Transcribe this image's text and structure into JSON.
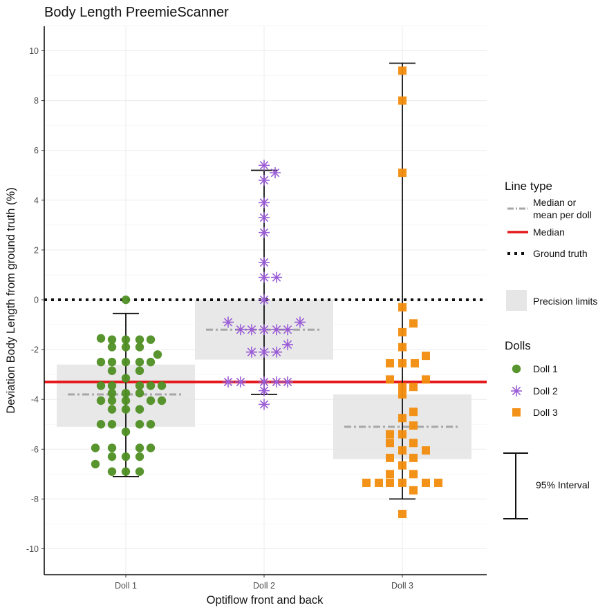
{
  "chart_data": {
    "type": "scatter",
    "title": "Body Length PreemieScanner",
    "xlabel": "Optiflow front and back",
    "ylabel": "Deviation Body Length from ground truth (%)",
    "ylim": [
      -11,
      11
    ],
    "yticks": [
      10,
      8,
      6,
      4,
      2,
      0,
      -2,
      -4,
      -6,
      -8,
      -10
    ],
    "ytick_labels": [
      "10",
      "8",
      "6",
      "4",
      "2",
      "0",
      "-2",
      "-4",
      "-6",
      "-8",
      "-10"
    ],
    "categories": [
      "Doll 1",
      "Doll 2",
      "Doll 3"
    ],
    "overall_median": -3.3,
    "ground_truth": 0,
    "colors": {
      "doll1": "#4f8f23",
      "doll2": "#9a5cd6",
      "doll3": "#f28c0c",
      "median": "#e41a1c",
      "mean": "#a6a6a6",
      "band": "#e6e6e6"
    },
    "series": [
      {
        "name": "Doll 1",
        "marker": "circle",
        "center": 1,
        "per_doll_median": -3.8,
        "precision_limits": [
          -5.1,
          -2.6
        ],
        "interval_95": [
          -7.1,
          -0.55
        ],
        "points": [
          {
            "x": 1.0,
            "y": 0.0
          },
          {
            "x": 0.82,
            "y": -1.55
          },
          {
            "x": 0.9,
            "y": -1.6
          },
          {
            "x": 1.0,
            "y": -1.6
          },
          {
            "x": 1.1,
            "y": -1.6
          },
          {
            "x": 1.18,
            "y": -1.6
          },
          {
            "x": 0.9,
            "y": -1.9
          },
          {
            "x": 1.0,
            "y": -1.9
          },
          {
            "x": 1.1,
            "y": -1.9
          },
          {
            "x": 1.23,
            "y": -2.2
          },
          {
            "x": 0.82,
            "y": -2.5
          },
          {
            "x": 0.9,
            "y": -2.5
          },
          {
            "x": 1.0,
            "y": -2.5
          },
          {
            "x": 1.1,
            "y": -2.5
          },
          {
            "x": 1.18,
            "y": -2.5
          },
          {
            "x": 0.9,
            "y": -2.85
          },
          {
            "x": 1.1,
            "y": -2.85
          },
          {
            "x": 1.0,
            "y": -3.15
          },
          {
            "x": 0.82,
            "y": -3.45
          },
          {
            "x": 0.9,
            "y": -3.45
          },
          {
            "x": 1.1,
            "y": -3.45
          },
          {
            "x": 1.18,
            "y": -3.45
          },
          {
            "x": 1.26,
            "y": -3.45
          },
          {
            "x": 0.9,
            "y": -3.75
          },
          {
            "x": 1.0,
            "y": -3.75
          },
          {
            "x": 1.1,
            "y": -3.75
          },
          {
            "x": 0.82,
            "y": -4.05
          },
          {
            "x": 0.9,
            "y": -4.05
          },
          {
            "x": 1.0,
            "y": -4.05
          },
          {
            "x": 1.18,
            "y": -4.05
          },
          {
            "x": 1.26,
            "y": -4.05
          },
          {
            "x": 0.9,
            "y": -4.4
          },
          {
            "x": 1.0,
            "y": -4.4
          },
          {
            "x": 1.1,
            "y": -4.4
          },
          {
            "x": 0.82,
            "y": -5.0
          },
          {
            "x": 0.9,
            "y": -5.0
          },
          {
            "x": 1.1,
            "y": -5.0
          },
          {
            "x": 1.18,
            "y": -5.0
          },
          {
            "x": 1.0,
            "y": -5.3
          },
          {
            "x": 0.78,
            "y": -5.95
          },
          {
            "x": 0.9,
            "y": -5.95
          },
          {
            "x": 1.1,
            "y": -5.95
          },
          {
            "x": 1.18,
            "y": -5.95
          },
          {
            "x": 0.9,
            "y": -6.3
          },
          {
            "x": 1.0,
            "y": -6.3
          },
          {
            "x": 1.1,
            "y": -6.3
          },
          {
            "x": 0.78,
            "y": -6.6
          },
          {
            "x": 0.9,
            "y": -6.9
          },
          {
            "x": 1.0,
            "y": -6.9
          },
          {
            "x": 1.1,
            "y": -6.9
          }
        ]
      },
      {
        "name": "Doll 2",
        "marker": "asterisk",
        "center": 2,
        "per_doll_median": -1.2,
        "precision_limits": [
          -2.4,
          0
        ],
        "interval_95": [
          -3.8,
          5.2
        ],
        "points": [
          {
            "x": 2.0,
            "y": 5.4
          },
          {
            "x": 2.08,
            "y": 5.1
          },
          {
            "x": 2.0,
            "y": 4.8
          },
          {
            "x": 2.0,
            "y": 3.9
          },
          {
            "x": 2.0,
            "y": 3.3
          },
          {
            "x": 2.0,
            "y": 2.7
          },
          {
            "x": 2.0,
            "y": 1.5
          },
          {
            "x": 2.0,
            "y": 0.9
          },
          {
            "x": 2.09,
            "y": 0.9
          },
          {
            "x": 2.0,
            "y": 0.0
          },
          {
            "x": 1.74,
            "y": -0.9
          },
          {
            "x": 2.26,
            "y": -0.9
          },
          {
            "x": 1.83,
            "y": -1.2
          },
          {
            "x": 1.91,
            "y": -1.2
          },
          {
            "x": 2.0,
            "y": -1.2
          },
          {
            "x": 2.09,
            "y": -1.2
          },
          {
            "x": 2.17,
            "y": -1.2
          },
          {
            "x": 2.17,
            "y": -1.8
          },
          {
            "x": 1.91,
            "y": -2.1
          },
          {
            "x": 2.0,
            "y": -2.1
          },
          {
            "x": 2.09,
            "y": -2.1
          },
          {
            "x": 1.74,
            "y": -3.3
          },
          {
            "x": 1.83,
            "y": -3.3
          },
          {
            "x": 2.0,
            "y": -3.3
          },
          {
            "x": 2.09,
            "y": -3.3
          },
          {
            "x": 2.17,
            "y": -3.3
          },
          {
            "x": 2.0,
            "y": -3.65
          },
          {
            "x": 2.0,
            "y": -4.2
          }
        ]
      },
      {
        "name": "Doll 3",
        "marker": "square",
        "center": 3,
        "per_doll_median": -5.1,
        "precision_limits": [
          -6.4,
          -3.8
        ],
        "interval_95": [
          -8.0,
          9.5
        ],
        "points": [
          {
            "x": 3.0,
            "y": 9.2
          },
          {
            "x": 3.0,
            "y": 8.0
          },
          {
            "x": 3.0,
            "y": 5.1
          },
          {
            "x": 3.0,
            "y": -0.3
          },
          {
            "x": 3.08,
            "y": -0.95
          },
          {
            "x": 3.0,
            "y": -1.3
          },
          {
            "x": 3.0,
            "y": -1.9
          },
          {
            "x": 3.17,
            "y": -2.25
          },
          {
            "x": 2.91,
            "y": -2.55
          },
          {
            "x": 3.0,
            "y": -2.55
          },
          {
            "x": 3.09,
            "y": -2.55
          },
          {
            "x": 2.91,
            "y": -3.2
          },
          {
            "x": 3.17,
            "y": -3.2
          },
          {
            "x": 3.0,
            "y": -3.5
          },
          {
            "x": 3.08,
            "y": -3.5
          },
          {
            "x": 3.0,
            "y": -3.8
          },
          {
            "x": 3.08,
            "y": -4.5
          },
          {
            "x": 3.0,
            "y": -4.75
          },
          {
            "x": 3.08,
            "y": -5.05
          },
          {
            "x": 2.91,
            "y": -5.4
          },
          {
            "x": 3.0,
            "y": -5.4
          },
          {
            "x": 2.91,
            "y": -5.75
          },
          {
            "x": 3.08,
            "y": -5.75
          },
          {
            "x": 3.0,
            "y": -6.05
          },
          {
            "x": 3.17,
            "y": -6.05
          },
          {
            "x": 2.91,
            "y": -6.35
          },
          {
            "x": 3.08,
            "y": -6.35
          },
          {
            "x": 3.0,
            "y": -6.65
          },
          {
            "x": 3.08,
            "y": -7.0
          },
          {
            "x": 2.91,
            "y": -7.0
          },
          {
            "x": 2.74,
            "y": -7.35
          },
          {
            "x": 2.83,
            "y": -7.35
          },
          {
            "x": 2.91,
            "y": -7.35
          },
          {
            "x": 3.0,
            "y": -7.35
          },
          {
            "x": 3.17,
            "y": -7.35
          },
          {
            "x": 3.26,
            "y": -7.35
          },
          {
            "x": 3.08,
            "y": -7.65
          },
          {
            "x": 3.0,
            "y": -8.6
          }
        ]
      }
    ],
    "legend": {
      "line_type_title": "Line type",
      "line_types": [
        "Median or",
        "mean per doll",
        "Median",
        "Ground truth"
      ],
      "precision_label": "Precision limits",
      "dolls_title": "Dolls",
      "dolls": [
        "Doll 1",
        "Doll 2",
        "Doll 3"
      ],
      "interval_label": "95% Interval"
    }
  }
}
